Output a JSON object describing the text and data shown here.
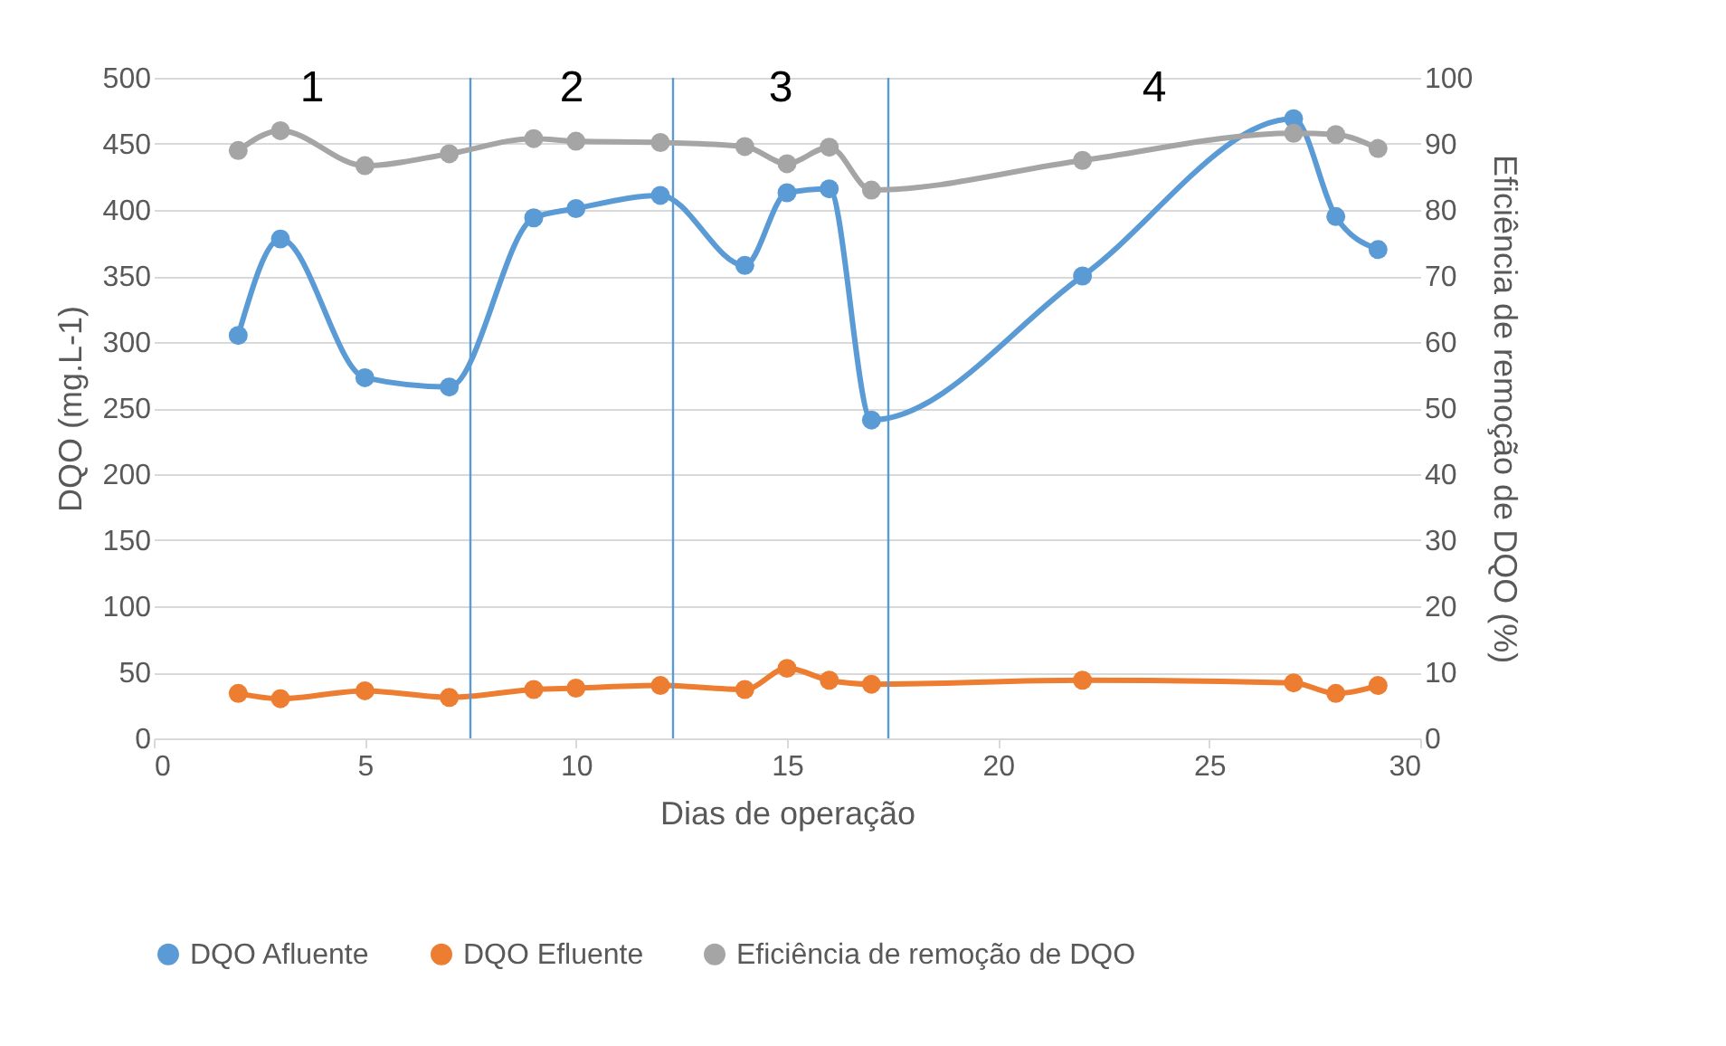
{
  "chart_data": {
    "type": "line",
    "xlabel": "Dias de operação",
    "ylabel": "DQO (mg.L-1)",
    "y2label": "Eficiência de remoção de DQO (%)",
    "x": [
      2,
      3,
      5,
      7,
      9,
      10,
      12,
      14,
      15,
      16,
      17,
      22,
      27,
      28,
      29
    ],
    "series": [
      {
        "name": "DQO Afluente",
        "color": "#5b9bd5",
        "values": [
          305,
          378,
          273,
          266,
          394,
          401,
          411,
          358,
          413,
          416,
          241,
          350,
          469,
          395,
          370
        ]
      },
      {
        "name": "DQO Efluente",
        "color": "#ed7d31",
        "values": [
          34,
          30,
          36,
          31,
          37,
          38,
          40,
          37,
          53,
          44,
          41,
          44,
          42,
          34,
          40
        ]
      },
      {
        "name": "Eficiência de remoção de DQO",
        "color": "#a5a5a5",
        "axis": "y2",
        "values": [
          89,
          92,
          86.7,
          88.5,
          90.8,
          90.4,
          90.2,
          89.6,
          87,
          89.5,
          83,
          87.5,
          91.6,
          91.4,
          89.3
        ]
      }
    ],
    "xlim": [
      0,
      30
    ],
    "xticks": [
      0,
      5,
      10,
      15,
      20,
      25,
      30
    ],
    "ylim": [
      0,
      500
    ],
    "yticks": [
      0,
      50,
      100,
      150,
      200,
      250,
      300,
      350,
      400,
      450,
      500
    ],
    "y2lim": [
      0,
      100
    ],
    "y2ticks": [
      0,
      10,
      20,
      30,
      40,
      50,
      60,
      70,
      80,
      90,
      100
    ],
    "ref_lines": [
      {
        "axis": "x",
        "value": 7.5,
        "color": "#5b9bd5"
      },
      {
        "axis": "x",
        "value": 12.3,
        "color": "#5b9bd5"
      },
      {
        "axis": "x",
        "value": 17.4,
        "color": "#5b9bd5"
      }
    ],
    "annotations": [
      "1",
      "2",
      "3",
      "4"
    ],
    "grid": "y",
    "legend": "bottom",
    "marker": "circle",
    "line_style": "solid"
  }
}
